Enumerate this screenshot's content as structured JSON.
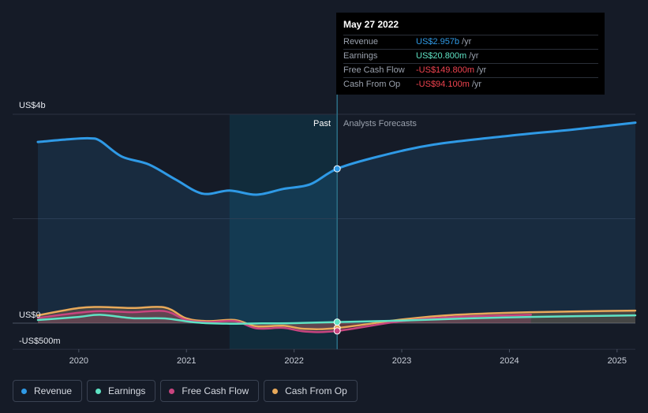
{
  "tooltip": {
    "date": "May 27 2022",
    "rows": [
      {
        "label": "Revenue",
        "value": "US$2.957b",
        "unit": "/yr",
        "color": "#2f9ae6"
      },
      {
        "label": "Earnings",
        "value": "US$20.800m",
        "unit": "/yr",
        "color": "#5fe3c4"
      },
      {
        "label": "Free Cash Flow",
        "value": "-US$149.800m",
        "unit": "/yr",
        "color": "#f0434f"
      },
      {
        "label": "Cash From Op",
        "value": "-US$94.100m",
        "unit": "/yr",
        "color": "#f0434f"
      }
    ]
  },
  "legend": [
    {
      "label": "Revenue",
      "color": "#2f9ae6"
    },
    {
      "label": "Earnings",
      "color": "#5fe3c4"
    },
    {
      "label": "Free Cash Flow",
      "color": "#c8457f"
    },
    {
      "label": "Cash From Op",
      "color": "#e8a95a"
    }
  ],
  "chart_data": {
    "type": "line",
    "title": "",
    "y_unit_labels": {
      "top": "US$4b",
      "zero": "US$0",
      "bottom": "-US$500m"
    },
    "ylim": [
      -500,
      4000
    ],
    "xlim": [
      2019.62,
      2025.17
    ],
    "x_ticks": [
      "2020",
      "2021",
      "2022",
      "2023",
      "2024",
      "2025"
    ],
    "section_labels": {
      "past": "Past",
      "forecast": "Analysts Forecasts"
    },
    "divider_x": 2022.4,
    "highlight_start_x": 2021.4,
    "grid": true,
    "legend_placement": "bottom-left",
    "series": [
      {
        "name": "Revenue",
        "color": "#2f9ae6",
        "fill": true,
        "x": [
          2019.62,
          2019.9,
          2020.1,
          2020.2,
          2020.4,
          2020.65,
          2020.9,
          2021.15,
          2021.4,
          2021.65,
          2021.9,
          2022.15,
          2022.4,
          2022.8,
          2023.3,
          2024.0,
          2024.6,
          2025.17
        ],
        "values": [
          3470,
          3520,
          3540,
          3490,
          3190,
          3040,
          2750,
          2480,
          2540,
          2460,
          2570,
          2660,
          2957,
          3200,
          3420,
          3590,
          3710,
          3840
        ]
      },
      {
        "name": "Earnings",
        "color": "#5fe3c4",
        "fill": false,
        "x": [
          2019.62,
          2020.0,
          2020.2,
          2020.5,
          2020.8,
          2021.1,
          2021.4,
          2021.7,
          2022.0,
          2022.4,
          2023.0,
          2023.6,
          2024.2,
          2025.17
        ],
        "values": [
          60,
          120,
          160,
          95,
          90,
          10,
          -10,
          -5,
          0,
          20.8,
          50,
          90,
          120,
          150
        ]
      },
      {
        "name": "Free Cash Flow",
        "color": "#c8457f",
        "fill": true,
        "x": [
          2019.62,
          2020.0,
          2020.2,
          2020.5,
          2020.8,
          2021.0,
          2021.2,
          2021.45,
          2021.65,
          2021.9,
          2022.1,
          2022.4,
          2023.0,
          2023.5,
          2024.2
        ],
        "values": [
          100,
          200,
          230,
          210,
          230,
          60,
          20,
          40,
          -100,
          -90,
          -160,
          -149.8,
          40,
          120,
          160
        ]
      },
      {
        "name": "Cash From Op",
        "color": "#e8a95a",
        "fill": true,
        "x": [
          2019.62,
          2020.0,
          2020.2,
          2020.5,
          2020.8,
          2021.0,
          2021.2,
          2021.45,
          2021.65,
          2021.9,
          2022.1,
          2022.4,
          2023.0,
          2023.5,
          2024.2,
          2025.17
        ],
        "values": [
          150,
          290,
          310,
          290,
          300,
          90,
          40,
          60,
          -60,
          -50,
          -110,
          -94.1,
          70,
          160,
          210,
          240
        ]
      }
    ]
  }
}
